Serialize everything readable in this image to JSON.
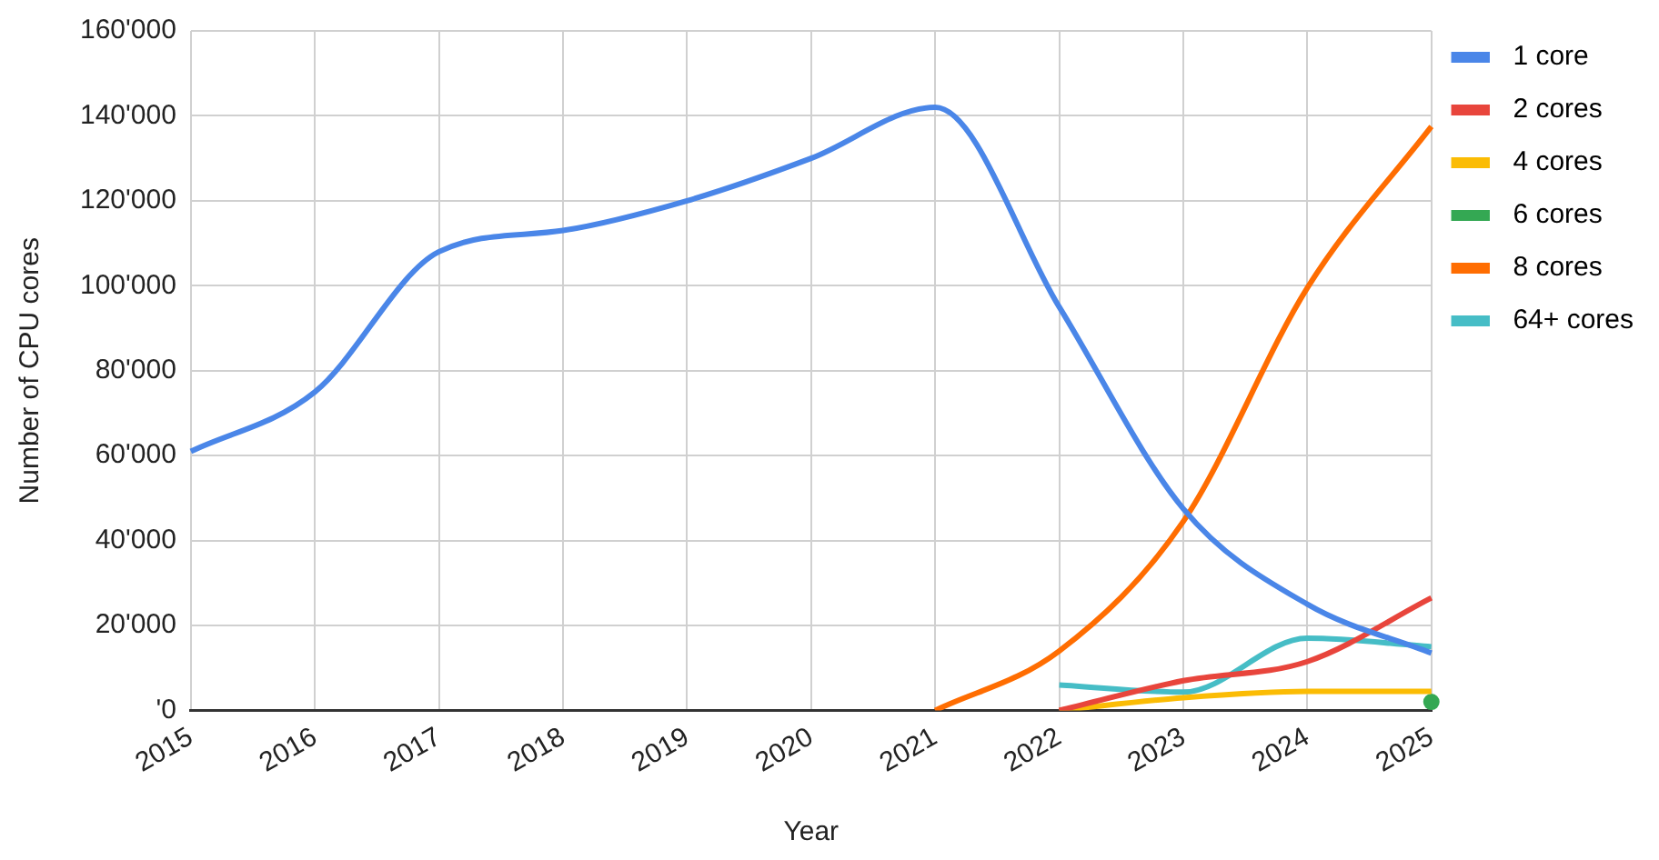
{
  "chart_data": {
    "type": "line",
    "xlabel": "Year",
    "ylabel": "Number of CPU cores",
    "categories": [
      "2015",
      "2016",
      "2017",
      "2018",
      "2019",
      "2020",
      "2021",
      "2022",
      "2023",
      "2024",
      "2025"
    ],
    "series": [
      {
        "name": "1 core",
        "color": "#4a86e8",
        "values": [
          61000,
          75000,
          108000,
          113000,
          120000,
          130000,
          142000,
          95000,
          47500,
          25000,
          13500
        ]
      },
      {
        "name": "2 cores",
        "color": "#e8453c",
        "values": [
          null,
          null,
          null,
          null,
          null,
          null,
          null,
          0,
          7000,
          11500,
          26500
        ]
      },
      {
        "name": "4 cores",
        "color": "#fbbc04",
        "values": [
          null,
          null,
          null,
          null,
          null,
          null,
          null,
          0,
          3000,
          4500,
          4500
        ]
      },
      {
        "name": "6 cores",
        "color": "#34a853",
        "marker": "circle",
        "values": [
          null,
          null,
          null,
          null,
          null,
          null,
          null,
          null,
          null,
          null,
          2000
        ]
      },
      {
        "name": "8 cores",
        "color": "#ff6d01",
        "values": [
          null,
          null,
          null,
          null,
          null,
          null,
          0,
          14000,
          44500,
          99500,
          137500
        ]
      },
      {
        "name": "64+ cores",
        "color": "#46bdc6",
        "values": [
          null,
          null,
          null,
          null,
          null,
          null,
          null,
          6000,
          4300,
          17000,
          15000
        ]
      }
    ],
    "ylim": [
      0,
      160000
    ],
    "yticks": [
      {
        "value": 0,
        "label": "'0"
      },
      {
        "value": 20000,
        "label": "20'000"
      },
      {
        "value": 40000,
        "label": "40'000"
      },
      {
        "value": 60000,
        "label": "60'000"
      },
      {
        "value": 80000,
        "label": "80'000"
      },
      {
        "value": 100000,
        "label": "100'000"
      },
      {
        "value": 120000,
        "label": "120'000"
      },
      {
        "value": 140000,
        "label": "140'000"
      },
      {
        "value": 160000,
        "label": "160'000"
      }
    ],
    "grid": true,
    "legend": "right",
    "marker": "none",
    "line_style": "solid"
  }
}
